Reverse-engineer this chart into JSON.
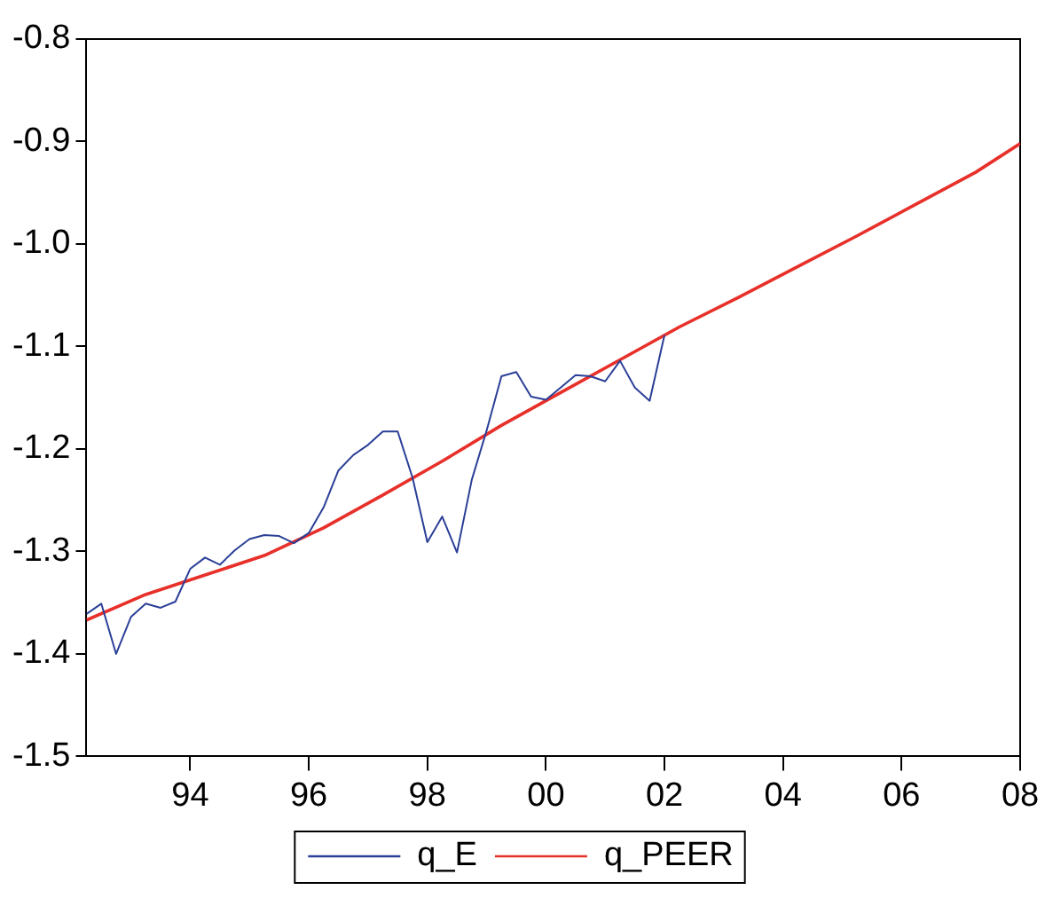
{
  "chart_data": {
    "type": "line",
    "xlim": [
      1992.25,
      2008
    ],
    "xticks": [
      {
        "value": 1994,
        "label": "94"
      },
      {
        "value": 1996,
        "label": "96"
      },
      {
        "value": 1998,
        "label": "98"
      },
      {
        "value": 2000,
        "label": "00"
      },
      {
        "value": 2002,
        "label": "02"
      },
      {
        "value": 2004,
        "label": "04"
      },
      {
        "value": 2006,
        "label": "06"
      },
      {
        "value": 2008,
        "label": "08"
      }
    ],
    "ylim": [
      -1.5,
      -0.8
    ],
    "yticks": [
      {
        "value": -1.5,
        "label": "-1.5"
      },
      {
        "value": -1.4,
        "label": "-1.4"
      },
      {
        "value": -1.3,
        "label": "-1.3"
      },
      {
        "value": -1.2,
        "label": "-1.2"
      },
      {
        "value": -1.1,
        "label": "-1.1"
      },
      {
        "value": -1,
        "label": "-1.0"
      },
      {
        "value": -0.9,
        "label": "-0.9"
      },
      {
        "value": -0.8,
        "label": "-0.8"
      }
    ],
    "grid": false,
    "legend": "bottom",
    "marker": "none",
    "line_style": "solid",
    "series": [
      {
        "name": "q_E",
        "color": "#2b3f97",
        "x": [
          1992.25,
          1992.5,
          1992.75,
          1993,
          1993.25,
          1993.5,
          1993.75,
          1994,
          1994.25,
          1994.5,
          1994.75,
          1995,
          1995.25,
          1995.5,
          1995.75,
          1996,
          1996.25,
          1996.5,
          1996.75,
          1997,
          1997.25,
          1997.5,
          1997.75,
          1998,
          1998.25,
          1998.5,
          1998.75,
          1999,
          1999.25,
          1999.5,
          1999.75,
          2000,
          2000.25,
          2000.5,
          2000.75,
          2001,
          2001.25,
          2001.5,
          2001.75,
          2002
        ],
        "values": [
          -1.361,
          -1.351,
          -1.4,
          -1.364,
          -1.351,
          -1.355,
          -1.349,
          -1.317,
          -1.306,
          -1.313,
          -1.299,
          -1.288,
          -1.284,
          -1.285,
          -1.292,
          -1.282,
          -1.257,
          -1.221,
          -1.206,
          -1.196,
          -1.183,
          -1.183,
          -1.228,
          -1.291,
          -1.266,
          -1.301,
          -1.23,
          -1.182,
          -1.129,
          -1.125,
          -1.149,
          -1.152,
          -1.14,
          -1.128,
          -1.129,
          -1.134,
          -1.114,
          -1.14,
          -1.153,
          -1.089
        ]
      },
      {
        "name": "q_PEER",
        "color": "#e8302a",
        "x": [
          1992.25,
          1993.25,
          1994.25,
          1995.25,
          1996.25,
          1997.25,
          1998.25,
          1999.25,
          2000.25,
          2001.25,
          2002.25,
          2003.25,
          2004.25,
          2005.25,
          2006.25,
          2007.25,
          2008
        ],
        "values": [
          -1.367,
          -1.342,
          -1.323,
          -1.304,
          -1.277,
          -1.245,
          -1.212,
          -1.177,
          -1.145,
          -1.113,
          -1.081,
          -1.052,
          -1.022,
          -0.992,
          -0.961,
          -0.93,
          -0.902
        ]
      }
    ]
  }
}
